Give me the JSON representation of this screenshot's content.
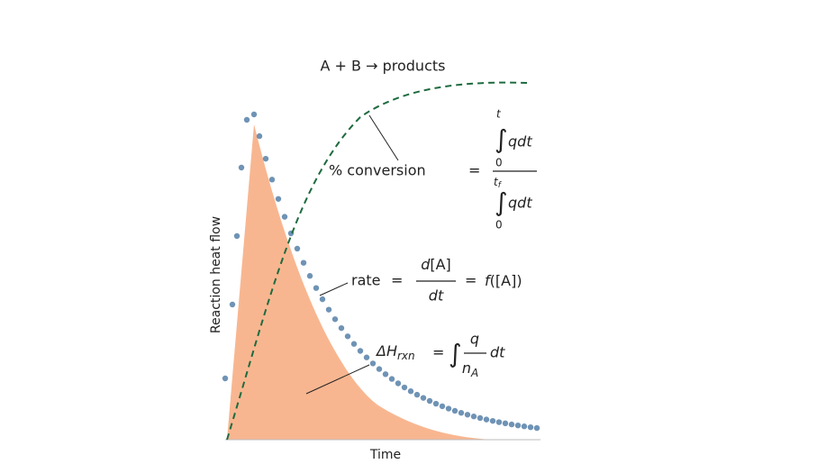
{
  "title": "A + B → products",
  "y_axis_label": "Reaction heat flow",
  "x_axis_label": "Time",
  "conversion": {
    "label": "% conversion",
    "equals": "=",
    "numerator": {
      "integral": "∫",
      "upper": "t",
      "lower": "0",
      "integrand": "qdt"
    },
    "denominator": {
      "integral": "∫",
      "upper": "t",
      "upper_sub": "f",
      "lower": "0",
      "integrand": "qdt"
    }
  },
  "rate": {
    "label": "rate",
    "equals": "=",
    "numerator_d": "d",
    "numerator_rest": "[A]",
    "denominator": "dt",
    "equals2": "=",
    "func": "f",
    "func_arg": "([A])"
  },
  "enthalpy": {
    "symbol": "ΔH",
    "symbol_sub": "rxn",
    "equals": "=",
    "integral": "∫",
    "numerator": "q",
    "denominator": "n",
    "denominator_sub": "A",
    "differential": "dt"
  }
}
